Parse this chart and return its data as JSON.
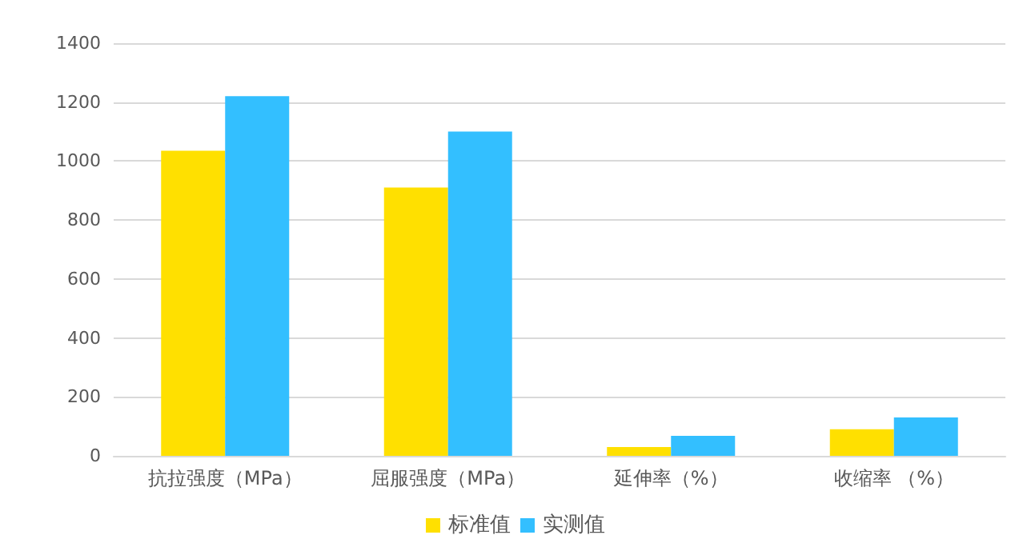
{
  "chart_data": {
    "type": "bar",
    "categories": [
      "抗拉强度（MPa）",
      "屈服强度（MPa）",
      "延伸率（%）",
      "收缩率 （%）"
    ],
    "series": [
      {
        "name": "标准值",
        "color": "#ffe000",
        "values": [
          1035,
          910,
          30,
          90
        ]
      },
      {
        "name": "实测值",
        "color": "#33bfff",
        "values": [
          1220,
          1100,
          68,
          130
        ]
      }
    ],
    "ylim": [
      0,
      1400
    ],
    "yticks": [
      0,
      200,
      400,
      600,
      800,
      1000,
      1200,
      1400
    ],
    "grid": "y",
    "legend": "bottom"
  }
}
